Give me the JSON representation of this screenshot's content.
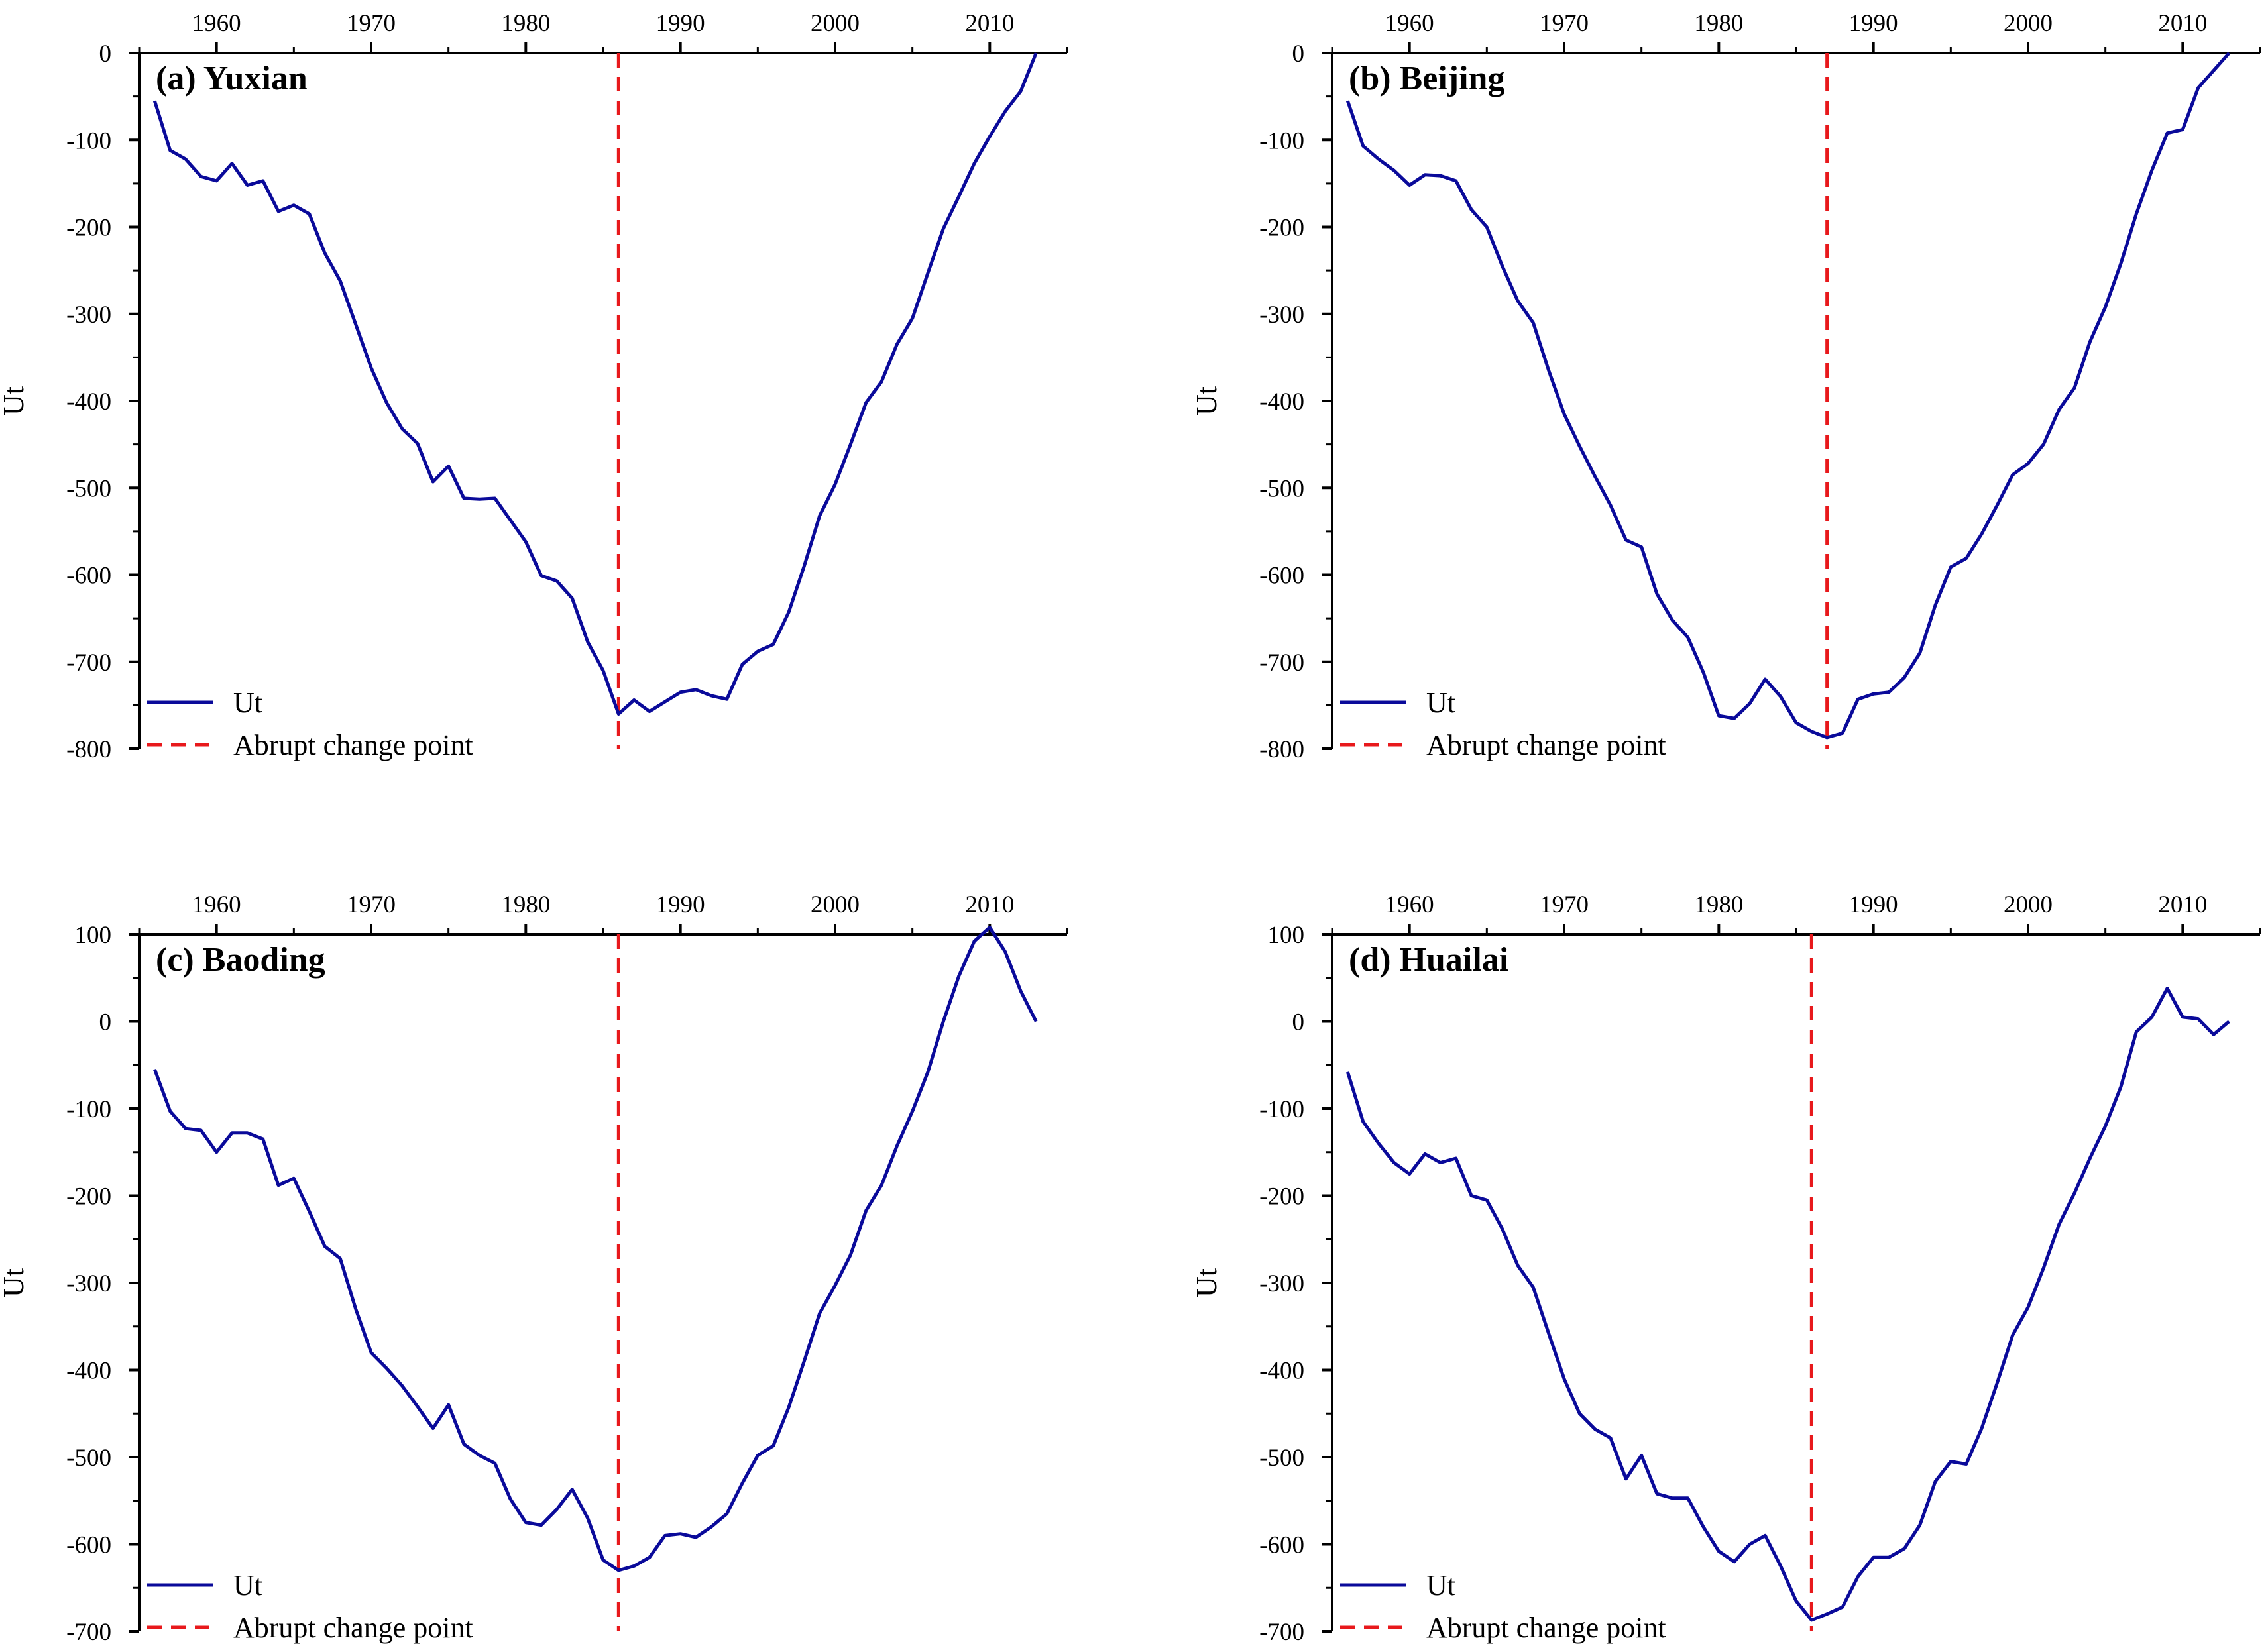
{
  "colors": {
    "series": "#0a0a9a",
    "change_point": "#e8191c",
    "axis": "#000000"
  },
  "legend": {
    "ut_label": "Ut",
    "change_label": "Abrupt change point"
  },
  "chart_data": [
    {
      "type": "line",
      "title": "(a) Yuxian",
      "xlabel": "",
      "ylabel": "Ut",
      "xlim": [
        1955,
        2015
      ],
      "ylim": [
        -800,
        0
      ],
      "y_ticks": [
        0,
        -100,
        -200,
        -300,
        -400,
        -500,
        -600,
        -700,
        -800
      ],
      "x_ticks": [
        1960,
        1970,
        1980,
        1990,
        2000,
        2010
      ],
      "change_point": 1986,
      "series": [
        {
          "name": "Ut",
          "x": [
            1956,
            1957,
            1958,
            1959,
            1960,
            1961,
            1962,
            1963,
            1964,
            1965,
            1966,
            1967,
            1968,
            1969,
            1970,
            1971,
            1972,
            1973,
            1974,
            1975,
            1976,
            1977,
            1978,
            1979,
            1980,
            1981,
            1982,
            1983,
            1984,
            1985,
            1986,
            1987,
            1988,
            1989,
            1990,
            1991,
            1992,
            1993,
            1994,
            1995,
            1996,
            1997,
            1998,
            1999,
            2000,
            2001,
            2002,
            2003,
            2004,
            2005,
            2006,
            2007,
            2008,
            2009,
            2010,
            2011,
            2012,
            2013
          ],
          "values": [
            -55,
            -112,
            -122,
            -142,
            -147,
            -127,
            -152,
            -147,
            -182,
            -175,
            -185,
            -230,
            -262,
            -312,
            -362,
            -402,
            -432,
            -449,
            -493,
            -475,
            -512,
            -513,
            -512,
            -537,
            -562,
            -601,
            -607,
            -627,
            -677,
            -710,
            -760,
            -744,
            -757,
            -746,
            -735,
            -732,
            -739,
            -743,
            -703,
            -688,
            -680,
            -643,
            -590,
            -532,
            -496,
            -450,
            -402,
            -378,
            -335,
            -305,
            -253,
            -202,
            -165,
            -127,
            -96,
            -67,
            -44,
            0
          ]
        }
      ]
    },
    {
      "type": "line",
      "title": "(b) Beijing",
      "xlabel": "",
      "ylabel": "Ut",
      "xlim": [
        1955,
        2015
      ],
      "ylim": [
        -800,
        0
      ],
      "y_ticks": [
        0,
        -100,
        -200,
        -300,
        -400,
        -500,
        -600,
        -700,
        -800
      ],
      "x_ticks": [
        1960,
        1970,
        1980,
        1990,
        2000,
        2010
      ],
      "change_point": 1987,
      "series": [
        {
          "name": "Ut",
          "x": [
            1956,
            1957,
            1958,
            1959,
            1960,
            1961,
            1962,
            1963,
            1964,
            1965,
            1966,
            1967,
            1968,
            1969,
            1970,
            1971,
            1972,
            1973,
            1974,
            1975,
            1976,
            1977,
            1978,
            1979,
            1980,
            1981,
            1982,
            1983,
            1984,
            1985,
            1986,
            1987,
            1988,
            1989,
            1990,
            1991,
            1992,
            1993,
            1994,
            1995,
            1996,
            1997,
            1998,
            1999,
            2000,
            2001,
            2002,
            2003,
            2004,
            2005,
            2006,
            2007,
            2008,
            2009,
            2010,
            2011,
            2012,
            2013
          ],
          "values": [
            -55,
            -107,
            -122,
            -135,
            -152,
            -140,
            -141,
            -147,
            -180,
            -200,
            -245,
            -285,
            -310,
            -365,
            -415,
            -452,
            -487,
            -520,
            -560,
            -568,
            -622,
            -652,
            -672,
            -712,
            -762,
            -765,
            -748,
            -720,
            -740,
            -770,
            -780,
            -787,
            -782,
            -743,
            -737,
            -735,
            -718,
            -690,
            -635,
            -591,
            -581,
            -553,
            -520,
            -485,
            -472,
            -450,
            -410,
            -385,
            -332,
            -292,
            -242,
            -185,
            -135,
            -92,
            -88,
            -40,
            -20,
            0
          ]
        }
      ]
    },
    {
      "type": "line",
      "title": "(c) Baoding",
      "xlabel": "",
      "ylabel": "Ut",
      "xlim": [
        1955,
        2015
      ],
      "ylim": [
        -700,
        100
      ],
      "y_ticks": [
        100,
        0,
        -100,
        -200,
        -300,
        -400,
        -500,
        -600,
        -700
      ],
      "x_ticks": [
        1960,
        1970,
        1980,
        1990,
        2000,
        2010
      ],
      "change_point": 1986,
      "series": [
        {
          "name": "Ut",
          "x": [
            1956,
            1957,
            1958,
            1959,
            1960,
            1961,
            1962,
            1963,
            1964,
            1965,
            1966,
            1967,
            1968,
            1969,
            1970,
            1971,
            1972,
            1973,
            1974,
            1975,
            1976,
            1977,
            1978,
            1979,
            1980,
            1981,
            1982,
            1983,
            1984,
            1985,
            1986,
            1987,
            1988,
            1989,
            1990,
            1991,
            1992,
            1993,
            1994,
            1995,
            1996,
            1997,
            1998,
            1999,
            2000,
            2001,
            2002,
            2003,
            2004,
            2005,
            2006,
            2007,
            2008,
            2009,
            2010,
            2011,
            2012,
            2013
          ],
          "values": [
            -55,
            -103,
            -123,
            -125,
            -150,
            -128,
            -128,
            -135,
            -188,
            -180,
            -218,
            -258,
            -272,
            -330,
            -380,
            -398,
            -418,
            -442,
            -467,
            -440,
            -485,
            -498,
            -507,
            -548,
            -575,
            -578,
            -560,
            -537,
            -570,
            -618,
            -630,
            -625,
            -615,
            -590,
            -588,
            -592,
            -580,
            -565,
            -530,
            -498,
            -487,
            -443,
            -390,
            -335,
            -303,
            -268,
            -217,
            -188,
            -143,
            -103,
            -58,
            0,
            52,
            92,
            108,
            80,
            35,
            0
          ]
        }
      ]
    },
    {
      "type": "line",
      "title": "(d) Huailai",
      "xlabel": "",
      "ylabel": "Ut",
      "xlim": [
        1955,
        2015
      ],
      "ylim": [
        -700,
        100
      ],
      "y_ticks": [
        100,
        0,
        -100,
        -200,
        -300,
        -400,
        -500,
        -600,
        -700
      ],
      "x_ticks": [
        1960,
        1970,
        1980,
        1990,
        2000,
        2010
      ],
      "change_point": 1986,
      "series": [
        {
          "name": "Ut",
          "x": [
            1956,
            1957,
            1958,
            1959,
            1960,
            1961,
            1962,
            1963,
            1964,
            1965,
            1966,
            1967,
            1968,
            1969,
            1970,
            1971,
            1972,
            1973,
            1974,
            1975,
            1976,
            1977,
            1978,
            1979,
            1980,
            1981,
            1982,
            1983,
            1984,
            1985,
            1986,
            1987,
            1988,
            1989,
            1990,
            1991,
            1992,
            1993,
            1994,
            1995,
            1996,
            1997,
            1998,
            1999,
            2000,
            2001,
            2002,
            2003,
            2004,
            2005,
            2006,
            2007,
            2008,
            2009,
            2010,
            2011,
            2012,
            2013
          ],
          "values": [
            -58,
            -115,
            -140,
            -162,
            -175,
            -152,
            -162,
            -157,
            -200,
            -205,
            -238,
            -280,
            -305,
            -358,
            -410,
            -450,
            -468,
            -478,
            -525,
            -498,
            -542,
            -547,
            -547,
            -580,
            -608,
            -620,
            -600,
            -590,
            -625,
            -665,
            -687,
            -680,
            -672,
            -637,
            -615,
            -615,
            -605,
            -578,
            -528,
            -505,
            -508,
            -467,
            -415,
            -360,
            -328,
            -283,
            -233,
            -197,
            -157,
            -120,
            -75,
            -12,
            5,
            38,
            5,
            3,
            -15,
            0
          ]
        }
      ]
    }
  ]
}
